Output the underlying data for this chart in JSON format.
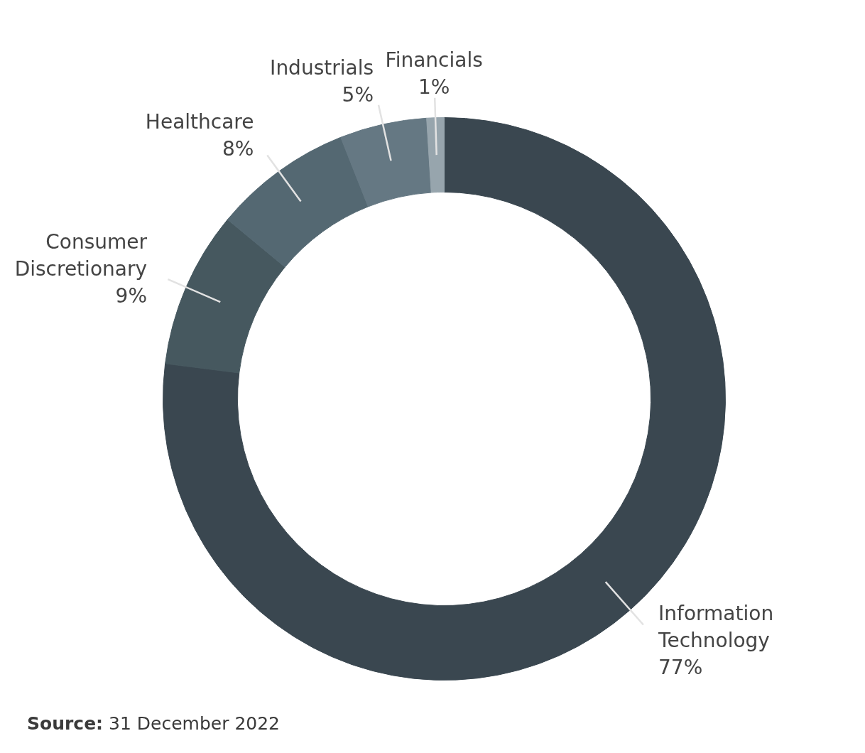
{
  "chart_data": {
    "type": "donut",
    "categories": [
      "Information Technology",
      "Consumer Discretionary",
      "Healthcare",
      "Industrials",
      "Financials"
    ],
    "values": [
      77,
      9,
      8,
      5,
      1
    ],
    "value_labels": [
      "77%",
      "9%",
      "8%",
      "5%",
      "1%"
    ],
    "colors": [
      "#3a4750",
      "#46585f",
      "#546872",
      "#657883",
      "#97a5ad"
    ],
    "legend": false,
    "annotations": [
      "Source: 31 December 2022"
    ]
  }
}
